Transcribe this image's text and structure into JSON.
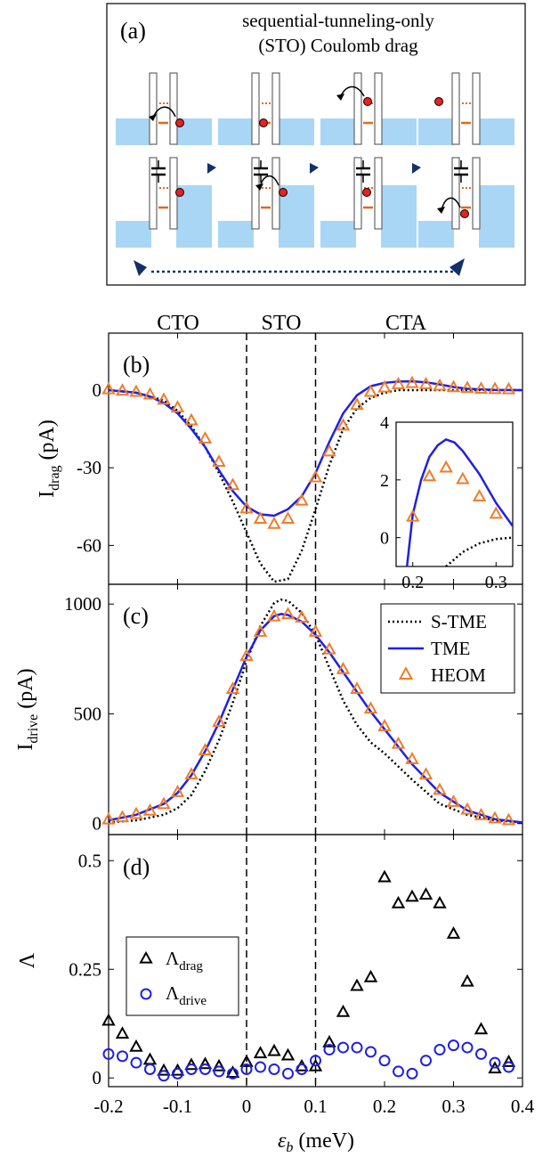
{
  "figure": {
    "panel_labels": [
      "(a)",
      "(b)",
      "(c)",
      "(d)"
    ],
    "schematic": {
      "title_line1": "sequential-tunneling-only",
      "title_line2": "(STO) Coulomb drag"
    },
    "regions": [
      "CTO",
      "STO",
      "CTA"
    ],
    "xlabel_symbol": "ε",
    "xlabel_sub": "b",
    "xlabel_unit": " (meV)",
    "legend": [
      "S-TME",
      "TME",
      "HEOM"
    ],
    "colors": {
      "s_tme": "#000000",
      "tme": "#1f1fe6",
      "heom": "#f07c28",
      "light_blue": "#a9d6f5",
      "navy": "#13306b",
      "dot_red": "#e8211e"
    }
  },
  "chart_data": [
    {
      "id": "b",
      "type": "line",
      "ylabel_main": "I",
      "ylabel_sub": "drag",
      "ylabel_unit": " (pA)",
      "xlim": [
        -0.2,
        0.4
      ],
      "ylim": [
        -75,
        22
      ],
      "xticks": [
        -0.2,
        -0.1,
        0,
        0.1,
        0.2,
        0.3,
        0.4
      ],
      "yticks": [
        0,
        -30,
        -60
      ],
      "ytick_labels": [
        "0",
        "-30",
        "-60"
      ],
      "vlines": [
        0,
        0.1
      ],
      "series": [
        {
          "name": "S-TME",
          "style": "dotted",
          "x": [
            -0.2,
            -0.16,
            -0.12,
            -0.1,
            -0.08,
            -0.06,
            -0.04,
            -0.02,
            0,
            0.02,
            0.04,
            0.06,
            0.08,
            0.1,
            0.12,
            0.14,
            0.16,
            0.18,
            0.2,
            0.22,
            0.26,
            0.3,
            0.4
          ],
          "y": [
            0,
            -1,
            -4,
            -8,
            -14,
            -22,
            -32,
            -43,
            -55,
            -67,
            -74,
            -73,
            -62,
            -46,
            -29,
            -15,
            -7,
            -3,
            -1,
            0,
            0,
            0,
            0
          ]
        },
        {
          "name": "TME",
          "style": "solid",
          "x": [
            -0.2,
            -0.16,
            -0.14,
            -0.12,
            -0.1,
            -0.08,
            -0.06,
            -0.04,
            -0.02,
            0,
            0.02,
            0.04,
            0.06,
            0.08,
            0.1,
            0.12,
            0.14,
            0.16,
            0.18,
            0.2,
            0.22,
            0.24,
            0.26,
            0.28,
            0.3,
            0.32,
            0.36,
            0.4
          ],
          "y": [
            0,
            -1,
            -2.5,
            -5,
            -9,
            -15,
            -22,
            -31,
            -39,
            -45,
            -48,
            -48.5,
            -46,
            -41,
            -32,
            -20,
            -9,
            -2,
            1.5,
            2.8,
            3.3,
            3.4,
            3.0,
            2.2,
            1.2,
            0.5,
            0.1,
            0
          ]
        },
        {
          "name": "HEOM",
          "style": "triangle",
          "x": [
            -0.2,
            -0.18,
            -0.16,
            -0.14,
            -0.12,
            -0.1,
            -0.08,
            -0.06,
            -0.04,
            -0.02,
            0,
            0.02,
            0.04,
            0.06,
            0.08,
            0.1,
            0.12,
            0.14,
            0.16,
            0.18,
            0.2,
            0.22,
            0.24,
            0.26,
            0.28,
            0.3,
            0.32,
            0.34,
            0.36,
            0.38
          ],
          "y": [
            0,
            -0.5,
            -1,
            -2,
            -4,
            -7,
            -12,
            -19,
            -28,
            -37,
            -46,
            -50,
            -52,
            -50,
            -43,
            -34,
            -24,
            -14,
            -6,
            -1,
            0.7,
            2,
            2.4,
            2,
            1.4,
            0.8,
            0.5,
            0.2,
            0.1,
            0
          ]
        }
      ],
      "inset": {
        "xlim": [
          0.18,
          0.32
        ],
        "ylim": [
          -1,
          4
        ],
        "xticks": [
          0.2,
          0.3
        ],
        "yticks": [
          0,
          2,
          4
        ],
        "series": [
          {
            "name": "S-TME",
            "style": "dotted",
            "x": [
              0.24,
              0.26,
              0.28,
              0.3,
              0.32
            ],
            "y": [
              -1,
              -0.5,
              -0.2,
              -0.05,
              0
            ]
          },
          {
            "name": "TME",
            "style": "solid",
            "x": [
              0.193,
              0.2,
              0.21,
              0.22,
              0.23,
              0.24,
              0.25,
              0.26,
              0.28,
              0.3,
              0.32
            ],
            "y": [
              -1,
              0.8,
              2,
              2.8,
              3.2,
              3.4,
              3.3,
              3.0,
              2.2,
              1.2,
              0.4
            ]
          },
          {
            "name": "HEOM",
            "style": "triangle",
            "x": [
              0.2,
              0.22,
              0.24,
              0.26,
              0.28,
              0.3
            ],
            "y": [
              0.7,
              2.1,
              2.4,
              2.0,
              1.4,
              0.8
            ]
          }
        ]
      }
    },
    {
      "id": "c",
      "type": "line",
      "ylabel_main": "I",
      "ylabel_sub": "drive",
      "ylabel_unit": " (pA)",
      "xlim": [
        -0.2,
        0.4
      ],
      "ylim": [
        -50,
        1090
      ],
      "xticks": [
        -0.2,
        -0.1,
        0,
        0.1,
        0.2,
        0.3,
        0.4
      ],
      "yticks": [
        0,
        500,
        1000
      ],
      "ytick_labels": [
        "0",
        "500",
        "1000"
      ],
      "vlines": [
        0,
        0.1
      ],
      "series": [
        {
          "name": "S-TME",
          "style": "dotted",
          "x": [
            -0.2,
            -0.16,
            -0.12,
            -0.1,
            -0.08,
            -0.06,
            -0.04,
            -0.02,
            0,
            0.02,
            0.04,
            0.05,
            0.06,
            0.08,
            0.1,
            0.12,
            0.14,
            0.16,
            0.18,
            0.2,
            0.24,
            0.28,
            0.32,
            0.36,
            0.4
          ],
          "y": [
            5,
            15,
            40,
            70,
            130,
            240,
            380,
            550,
            740,
            900,
            1005,
            1020,
            1015,
            960,
            860,
            710,
            560,
            450,
            370,
            320,
            200,
            90,
            40,
            15,
            5
          ]
        },
        {
          "name": "TME",
          "style": "solid",
          "x": [
            -0.2,
            -0.16,
            -0.12,
            -0.1,
            -0.08,
            -0.06,
            -0.04,
            -0.02,
            0,
            0.02,
            0.04,
            0.05,
            0.06,
            0.08,
            0.1,
            0.12,
            0.14,
            0.16,
            0.18,
            0.2,
            0.24,
            0.28,
            0.32,
            0.36,
            0.4
          ],
          "y": [
            15,
            40,
            90,
            140,
            220,
            330,
            460,
            610,
            760,
            880,
            945,
            955,
            950,
            920,
            860,
            780,
            690,
            600,
            510,
            430,
            270,
            140,
            60,
            20,
            5
          ]
        },
        {
          "name": "HEOM",
          "style": "triangle",
          "x": [
            -0.2,
            -0.18,
            -0.16,
            -0.14,
            -0.12,
            -0.1,
            -0.08,
            -0.06,
            -0.04,
            -0.02,
            0,
            0.02,
            0.04,
            0.06,
            0.08,
            0.1,
            0.12,
            0.14,
            0.16,
            0.18,
            0.2,
            0.22,
            0.24,
            0.26,
            0.28,
            0.3,
            0.32,
            0.34,
            0.36,
            0.38
          ],
          "y": [
            15,
            25,
            40,
            55,
            85,
            140,
            220,
            330,
            460,
            610,
            760,
            870,
            940,
            950,
            935,
            870,
            790,
            700,
            610,
            520,
            440,
            360,
            290,
            220,
            150,
            95,
            60,
            35,
            20,
            12
          ]
        }
      ]
    },
    {
      "id": "d",
      "type": "scatter",
      "ylabel_main": "Λ",
      "xlim": [
        -0.2,
        0.4
      ],
      "ylim": [
        -0.02,
        0.56
      ],
      "xticks": [
        -0.2,
        -0.1,
        0,
        0.1,
        0.2,
        0.3,
        0.4
      ],
      "xtick_labels": [
        "-0.2",
        "-0.1",
        "0",
        "0.1",
        "0.2",
        "0.3",
        "0.4"
      ],
      "yticks": [
        0,
        0.25,
        0.5
      ],
      "ytick_labels": [
        "0",
        "0.25",
        "0.5"
      ],
      "vlines": [
        0,
        0.1
      ],
      "series": [
        {
          "name": "Λ",
          "sub": "drag",
          "style": "triangle-black",
          "x": [
            -0.2,
            -0.18,
            -0.16,
            -0.14,
            -0.12,
            -0.1,
            -0.08,
            -0.06,
            -0.04,
            -0.02,
            0,
            0.02,
            0.04,
            0.06,
            0.08,
            0.1,
            0.12,
            0.14,
            0.16,
            0.18,
            0.2,
            0.22,
            0.24,
            0.26,
            0.28,
            0.3,
            0.32,
            0.34,
            0.36,
            0.38
          ],
          "y": [
            0.13,
            0.1,
            0.07,
            0.04,
            0.015,
            0.015,
            0.028,
            0.03,
            0.025,
            0.01,
            0.035,
            0.055,
            0.06,
            0.05,
            0.025,
            0.025,
            0.08,
            0.15,
            0.21,
            0.23,
            0.46,
            0.4,
            0.415,
            0.42,
            0.4,
            0.33,
            0.22,
            0.11,
            0.02,
            0.035
          ]
        },
        {
          "name": "Λ",
          "sub": "drive",
          "style": "circle-blue",
          "x": [
            -0.2,
            -0.18,
            -0.16,
            -0.14,
            -0.12,
            -0.1,
            -0.08,
            -0.06,
            -0.04,
            -0.02,
            0,
            0.02,
            0.04,
            0.06,
            0.08,
            0.1,
            0.12,
            0.14,
            0.16,
            0.18,
            0.2,
            0.22,
            0.24,
            0.26,
            0.28,
            0.3,
            0.32,
            0.34,
            0.36,
            0.38
          ],
          "y": [
            0.055,
            0.05,
            0.035,
            0.02,
            0.005,
            0.01,
            0.02,
            0.02,
            0.015,
            0.01,
            0.02,
            0.025,
            0.02,
            0.01,
            0.02,
            0.04,
            0.065,
            0.07,
            0.07,
            0.06,
            0.04,
            0.015,
            0.01,
            0.04,
            0.065,
            0.075,
            0.07,
            0.055,
            0.035,
            0.025
          ]
        }
      ]
    }
  ]
}
